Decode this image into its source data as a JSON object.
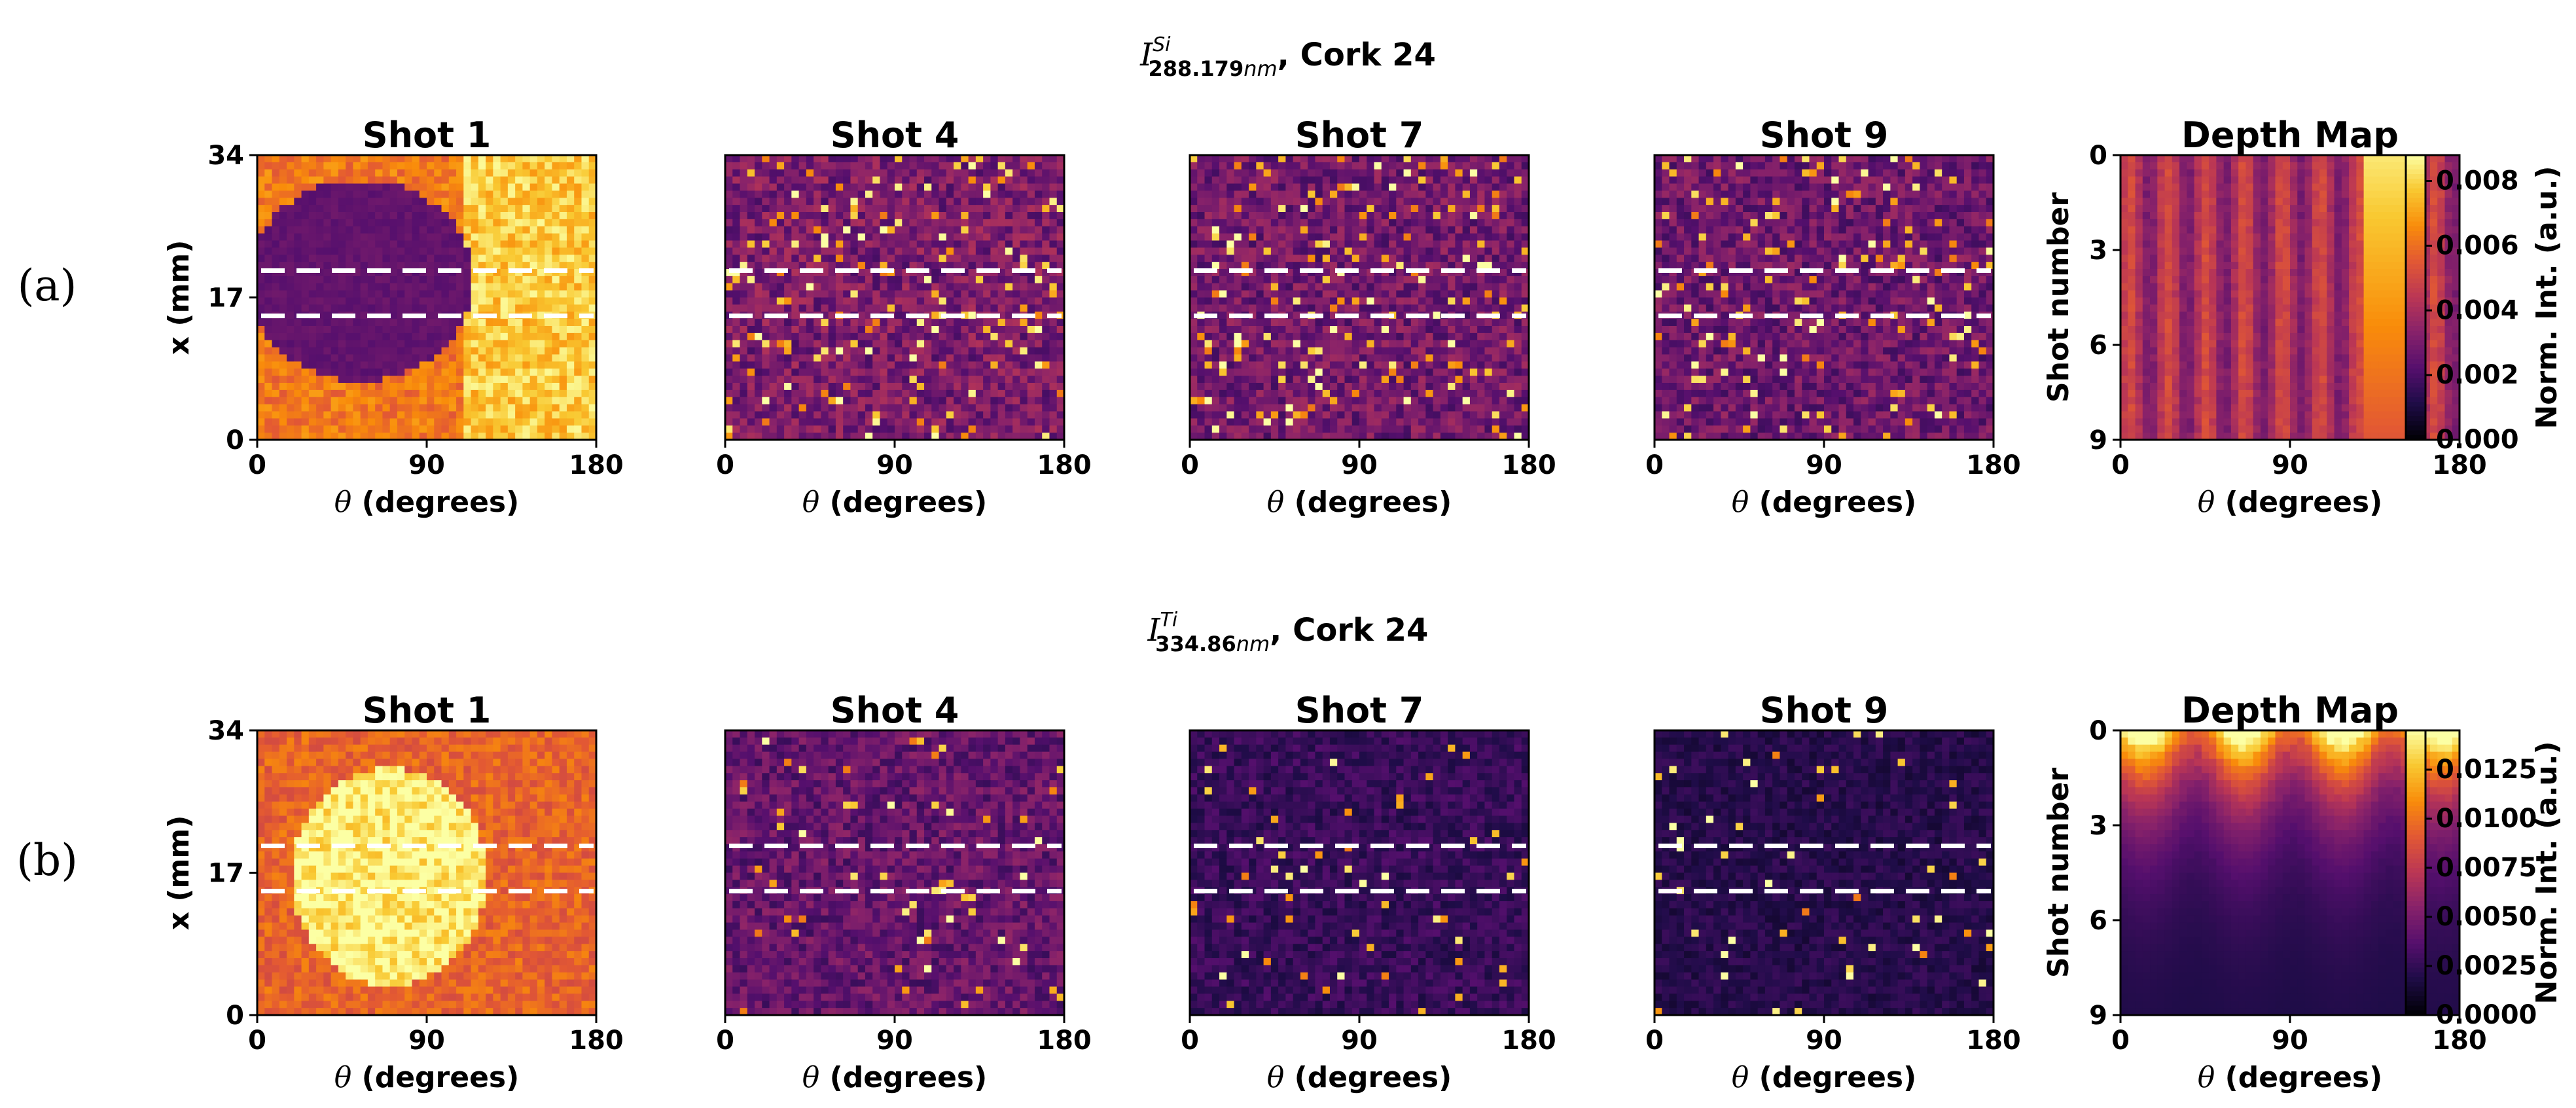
{
  "chart_data": [
    {
      "row_label": "(a)",
      "suptitle": {
        "symbol": "I",
        "element": "Si",
        "wavelength": "288.179",
        "unit": "nm",
        "rest": ", Cork 24"
      },
      "type": "heatmap",
      "panels": [
        {
          "title": "Shot 1",
          "kind": "map",
          "shot": 1,
          "pattern": "dark-disk",
          "base": 0.0062,
          "disk_value": 0.0025,
          "disk_center": {
            "theta": 55,
            "x": 19
          },
          "disk_radius": {
            "theta": 60,
            "x": 12
          }
        },
        {
          "title": "Shot 4",
          "kind": "map",
          "shot": 4,
          "pattern": "speckle",
          "base": 0.0032,
          "spots": 0.09
        },
        {
          "title": "Shot 7",
          "kind": "map",
          "shot": 7,
          "pattern": "speckle",
          "base": 0.003,
          "spots": 0.08
        },
        {
          "title": "Shot 9",
          "kind": "map",
          "shot": 9,
          "pattern": "speckle",
          "base": 0.0029,
          "spots": 0.08
        },
        {
          "title": "Depth Map",
          "kind": "depth",
          "pattern": "bright-band",
          "band": [
            128,
            160
          ]
        }
      ],
      "xlabel": "θ (degrees)",
      "ylabel": "x (mm)",
      "depth_ylabel": "Shot number",
      "xticks": [
        "0",
        "90",
        "180"
      ],
      "yticks": [
        "0",
        "17",
        "34"
      ],
      "depth_yticks": [
        "0",
        "3",
        "6",
        "9"
      ],
      "xlim": [
        0,
        180
      ],
      "ylim": [
        0,
        34
      ],
      "depth_ylim": [
        9,
        0
      ],
      "dashed_lines_x_mm": [
        20.2,
        14.8
      ],
      "colormap": "inferno",
      "colorbar": {
        "label": "Norm. Int. (a.u.)",
        "vmin": 0.0,
        "vmax": 0.0088,
        "ticks": [
          "0.000",
          "0.002",
          "0.004",
          "0.006",
          "0.008"
        ],
        "tick_values": [
          0,
          0.002,
          0.004,
          0.006,
          0.008
        ]
      }
    },
    {
      "row_label": "(b)",
      "suptitle": {
        "symbol": "I",
        "element": "Ti",
        "wavelength": "334.86",
        "unit": "nm",
        "rest": ", Cork 24"
      },
      "type": "heatmap",
      "panels": [
        {
          "title": "Shot 1",
          "kind": "map",
          "shot": 1,
          "pattern": "bright-disk",
          "base": 0.0095,
          "disk_value": 0.014,
          "disk_center": {
            "theta": 70,
            "x": 16.5
          },
          "disk_radius": {
            "theta": 52,
            "x": 13
          }
        },
        {
          "title": "Shot 4",
          "kind": "map",
          "shot": 4,
          "pattern": "speckle",
          "base": 0.0045,
          "spots": 0.03
        },
        {
          "title": "Shot 7",
          "kind": "map",
          "shot": 7,
          "pattern": "speckle",
          "base": 0.0028,
          "spots": 0.03
        },
        {
          "title": "Shot 9",
          "kind": "map",
          "shot": 9,
          "pattern": "speckle",
          "base": 0.0022,
          "spots": 0.03
        },
        {
          "title": "Depth Map",
          "kind": "depth",
          "pattern": "surface-decay"
        }
      ],
      "xlabel": "θ (degrees)",
      "ylabel": "x (mm)",
      "depth_ylabel": "Shot number",
      "xticks": [
        "0",
        "90",
        "180"
      ],
      "yticks": [
        "0",
        "17",
        "34"
      ],
      "depth_yticks": [
        "0",
        "3",
        "6",
        "9"
      ],
      "xlim": [
        0,
        180
      ],
      "ylim": [
        0,
        34
      ],
      "depth_ylim": [
        9,
        0
      ],
      "dashed_lines_x_mm": [
        20.2,
        14.8
      ],
      "colormap": "inferno",
      "colorbar": {
        "label": "Norm. Int. (a.u.)",
        "vmin": 0.0,
        "vmax": 0.0145,
        "ticks": [
          "0.0000",
          "0.0025",
          "0.0050",
          "0.0075",
          "0.0100",
          "0.0125"
        ],
        "tick_values": [
          0,
          0.0025,
          0.005,
          0.0075,
          0.01,
          0.0125
        ]
      }
    }
  ]
}
